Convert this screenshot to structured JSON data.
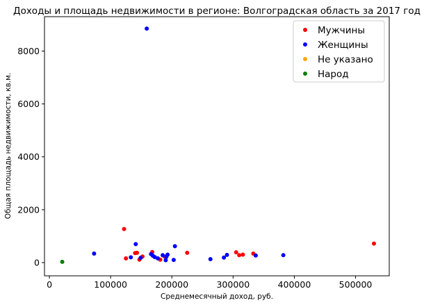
{
  "chart_data": {
    "type": "scatter",
    "title": "Доходы и площадь недвижимости в регионе: Волгоградская область за 2017 год",
    "xlabel": "Среднемесячный доход, руб.",
    "ylabel": "Общая площадь недвижимости, кв.м.",
    "xlim": [
      -8000,
      555000
    ],
    "ylim": [
      -500,
      9300
    ],
    "xticks": [
      0,
      100000,
      200000,
      300000,
      400000,
      500000
    ],
    "xtick_labels": [
      "0",
      "100000",
      "200000",
      "300000",
      "400000",
      "500000"
    ],
    "yticks": [
      0,
      2000,
      4000,
      6000,
      8000
    ],
    "ytick_labels": [
      "0",
      "2000",
      "4000",
      "6000",
      "8000"
    ],
    "grid": false,
    "legend_position": "top-right",
    "series": [
      {
        "name": "Мужчины",
        "color": "#ff0000",
        "points": [
          [
            122000,
            1270
          ],
          [
            125000,
            160
          ],
          [
            140000,
            360
          ],
          [
            143000,
            370
          ],
          [
            147000,
            110
          ],
          [
            152000,
            230
          ],
          [
            168000,
            400
          ],
          [
            181000,
            110
          ],
          [
            188000,
            230
          ],
          [
            225000,
            370
          ],
          [
            305000,
            390
          ],
          [
            310000,
            280
          ],
          [
            316000,
            300
          ],
          [
            333000,
            340
          ],
          [
            530000,
            720
          ]
        ]
      },
      {
        "name": "Женщины",
        "color": "#0000ff",
        "points": [
          [
            73000,
            340
          ],
          [
            133000,
            200
          ],
          [
            141000,
            700
          ],
          [
            149000,
            180
          ],
          [
            159000,
            8850
          ],
          [
            166000,
            320
          ],
          [
            169000,
            260
          ],
          [
            172000,
            210
          ],
          [
            177000,
            160
          ],
          [
            185000,
            280
          ],
          [
            190000,
            90
          ],
          [
            191000,
            220
          ],
          [
            193000,
            300
          ],
          [
            203000,
            100
          ],
          [
            205000,
            620
          ],
          [
            263000,
            130
          ],
          [
            285000,
            190
          ],
          [
            290000,
            290
          ],
          [
            337000,
            270
          ],
          [
            382000,
            280
          ]
        ]
      },
      {
        "name": "Не указано",
        "color": "#ffa500",
        "points": []
      },
      {
        "name": "Народ",
        "color": "#008000",
        "points": [
          [
            21000,
            30
          ]
        ]
      }
    ]
  }
}
